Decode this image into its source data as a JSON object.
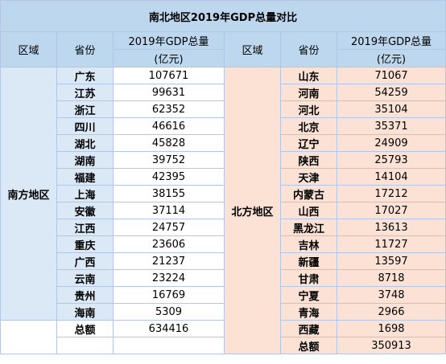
{
  "title": "南北地区2019年GDP总量对比",
  "headers": {
    "region": "区域",
    "province": "省份",
    "gdp_line1": "2019年GDP总量",
    "gdp_line2": "(亿元)"
  },
  "south": {
    "region_label": "南方地区",
    "rows": [
      {
        "province": "广东",
        "value": "107671"
      },
      {
        "province": "江苏",
        "value": "99631"
      },
      {
        "province": "浙江",
        "value": "62352"
      },
      {
        "province": "四川",
        "value": "46616"
      },
      {
        "province": "湖北",
        "value": "45828"
      },
      {
        "province": "湖南",
        "value": "39752"
      },
      {
        "province": "福建",
        "value": "42395"
      },
      {
        "province": "上海",
        "value": "38155"
      },
      {
        "province": "安徽",
        "value": "37114"
      },
      {
        "province": "江西",
        "value": "24757"
      },
      {
        "province": "重庆",
        "value": "23606"
      },
      {
        "province": "广西",
        "value": "21237"
      },
      {
        "province": "云南",
        "value": "23224"
      },
      {
        "province": "贵州",
        "value": "16769"
      },
      {
        "province": "海南",
        "value": "5309"
      }
    ],
    "total_label": "总额",
    "total_value": "634416"
  },
  "north": {
    "region_label": "北方地区",
    "rows": [
      {
        "province": "山东",
        "value": "71067"
      },
      {
        "province": "河南",
        "value": "54259"
      },
      {
        "province": "河北",
        "value": "35104"
      },
      {
        "province": "北京",
        "value": "35371"
      },
      {
        "province": "辽宁",
        "value": "24909"
      },
      {
        "province": "陕西",
        "value": "25793"
      },
      {
        "province": "天津",
        "value": "14104"
      },
      {
        "province": "内蒙古",
        "value": "17212"
      },
      {
        "province": "山西",
        "value": "17027"
      },
      {
        "province": "黑龙江",
        "value": "13613"
      },
      {
        "province": "吉林",
        "value": "11727"
      },
      {
        "province": "新疆",
        "value": "13597"
      },
      {
        "province": "甘肃",
        "value": "8718"
      },
      {
        "province": "宁夏",
        "value": "3748"
      },
      {
        "province": "青海",
        "value": "2966"
      },
      {
        "province": "西藏",
        "value": "1698"
      }
    ],
    "total_label": "总额",
    "total_value": "350913"
  },
  "colors": {
    "header_blue": "#bdd7ee",
    "south_fill": "#dbe8f6",
    "north_fill": "#fbe2d5",
    "grid": "#b4c6e7"
  }
}
